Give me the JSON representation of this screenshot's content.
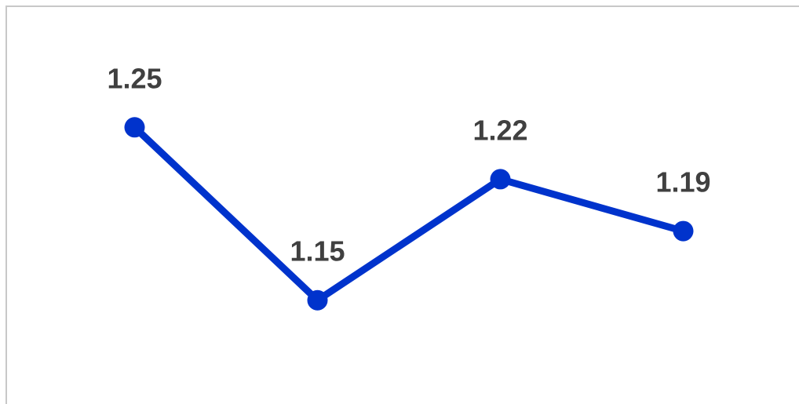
{
  "chart_data": {
    "type": "line",
    "categories": [
      null,
      null,
      null,
      null
    ],
    "values": [
      1.25,
      1.15,
      1.22,
      1.19
    ],
    "color": "#0033cc",
    "ylim": [
      1.09,
      1.32
    ]
  }
}
